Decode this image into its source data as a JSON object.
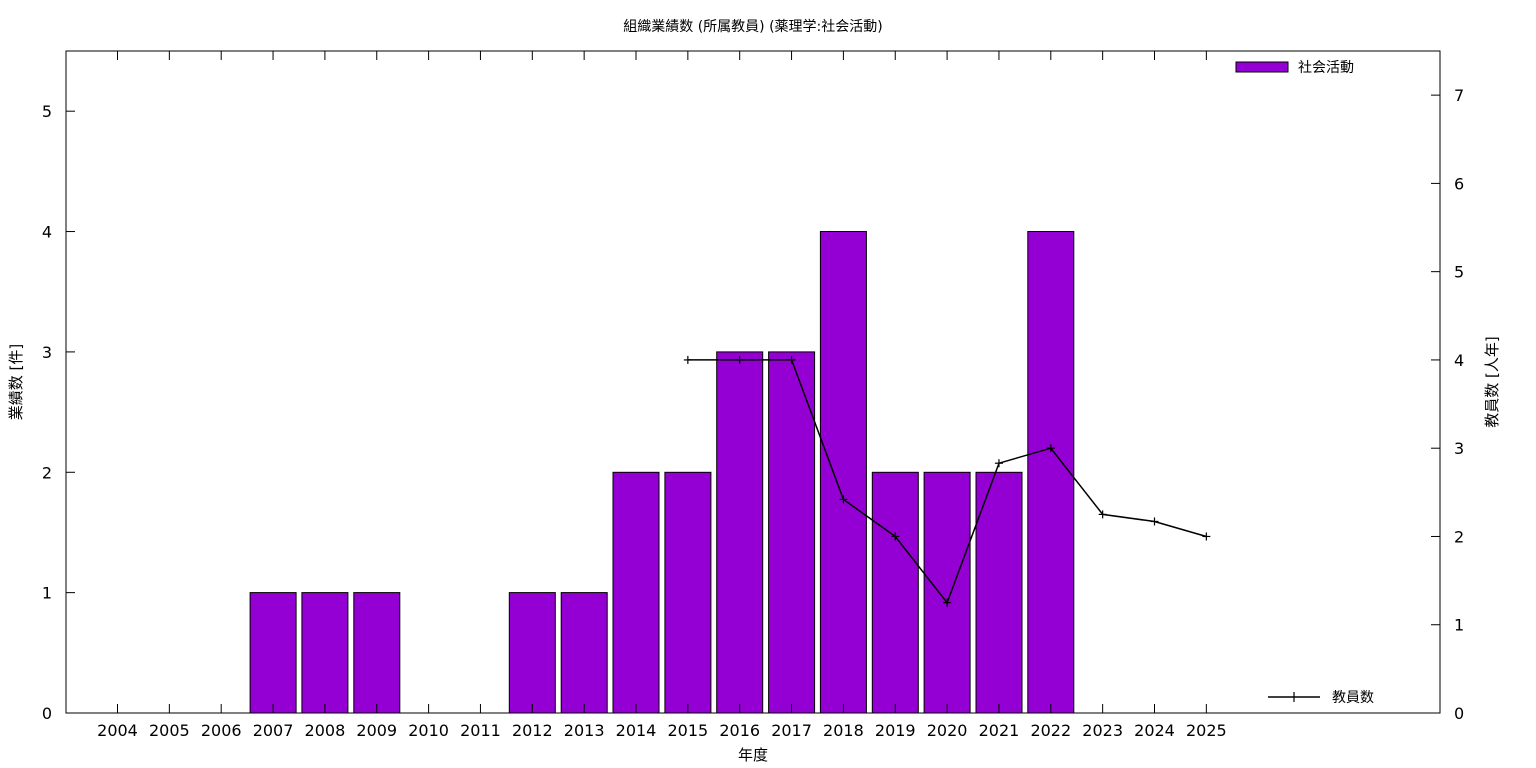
{
  "chart_data": {
    "type": "bar",
    "title": "組織業績数 (所属教員) (薬理学:社会活動)",
    "xlabel": "年度",
    "ylabel": "業績数 [件]",
    "y2label": "教員数 [人年]",
    "categories": [
      "2004",
      "2005",
      "2006",
      "2007",
      "2008",
      "2009",
      "2010",
      "2011",
      "2012",
      "2013",
      "2014",
      "2015",
      "2016",
      "2017",
      "2018",
      "2019",
      "2020",
      "2021",
      "2022",
      "2023",
      "2024",
      "2025"
    ],
    "ylim": [
      0,
      5.5
    ],
    "y2lim": [
      0,
      7.5
    ],
    "yticks": [
      0,
      1,
      2,
      3,
      4,
      5
    ],
    "y2ticks": [
      0,
      1,
      2,
      3,
      4,
      5,
      6,
      7
    ],
    "grid": false,
    "series": [
      {
        "name": "社会活動",
        "type": "bar",
        "axis": "left",
        "color": "#9400d3",
        "values": [
          0,
          0,
          0,
          1,
          1,
          1,
          0,
          0,
          1,
          1,
          2,
          2,
          3,
          3,
          4,
          2,
          2,
          2,
          4,
          0,
          0,
          0
        ]
      },
      {
        "name": "教員数",
        "type": "line",
        "axis": "right",
        "color": "#000000",
        "x": [
          "2015",
          "2016",
          "2017",
          "2018",
          "2019",
          "2020",
          "2021",
          "2022",
          "2023",
          "2024",
          "2025"
        ],
        "values": [
          4.0,
          4.0,
          4.0,
          2.42,
          2.0,
          1.25,
          2.83,
          3.0,
          2.25,
          2.17,
          2.0
        ]
      }
    ],
    "legend": [
      {
        "label": "社会活動",
        "position": "top-right"
      },
      {
        "label": "教員数",
        "position": "bottom-right"
      }
    ]
  }
}
